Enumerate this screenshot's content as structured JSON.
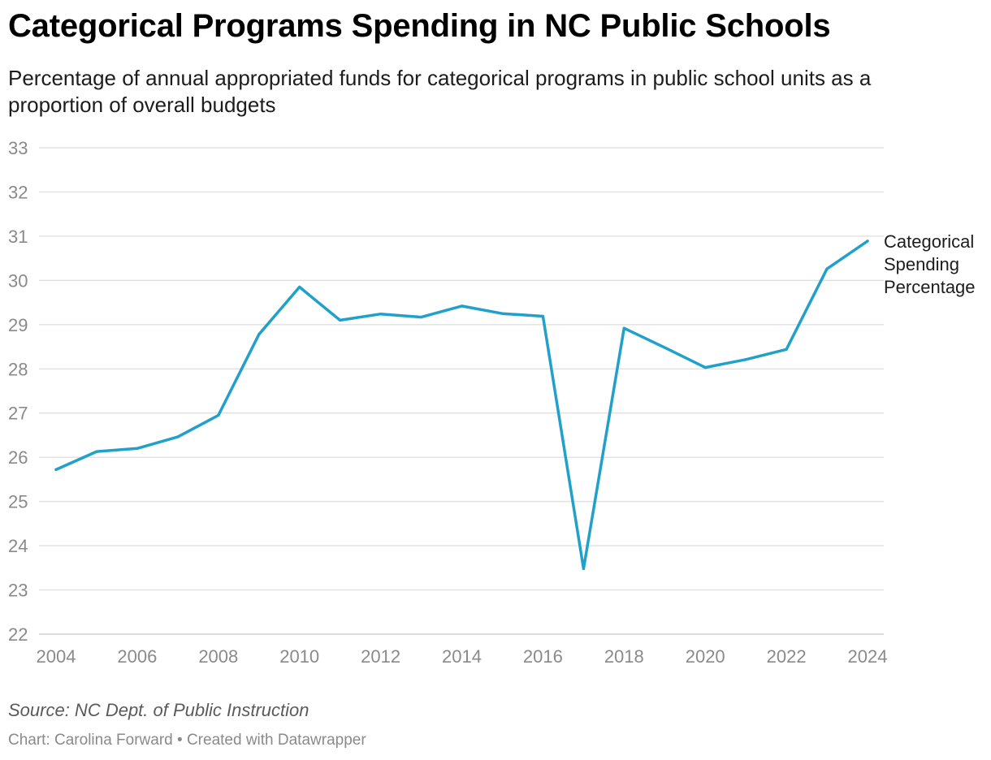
{
  "title": "Categorical Programs Spending in NC Public Schools",
  "subtitle": "Percentage of annual appropriated funds for categorical programs in public school units as a proportion of overall budgets",
  "colors": {
    "line": "#22a0cc",
    "grid": "#e0e0e0",
    "tick": "#8a8a8a"
  },
  "chart_data": {
    "type": "line",
    "title": "Categorical Programs Spending in NC Public Schools",
    "xlabel": "",
    "ylabel": "",
    "xlim": [
      2004,
      2024
    ],
    "ylim": [
      22,
      33
    ],
    "x_ticks": [
      2004,
      2006,
      2008,
      2010,
      2012,
      2014,
      2016,
      2018,
      2020,
      2022,
      2024
    ],
    "y_ticks": [
      22,
      23,
      24,
      25,
      26,
      27,
      28,
      29,
      30,
      31,
      32,
      33
    ],
    "grid": true,
    "series": [
      {
        "name": "Categorical Spending Percentage",
        "label_lines": [
          "Categorical",
          "Spending",
          "Percentage"
        ],
        "x": [
          2004,
          2005,
          2006,
          2007,
          2008,
          2009,
          2010,
          2011,
          2012,
          2013,
          2014,
          2015,
          2016,
          2017,
          2018,
          2019,
          2020,
          2021,
          2022,
          2023,
          2024
        ],
        "values": [
          25.72,
          26.13,
          26.2,
          26.46,
          26.95,
          28.78,
          29.85,
          29.1,
          29.24,
          29.17,
          29.42,
          29.25,
          29.19,
          23.48,
          28.92,
          28.48,
          28.03,
          28.21,
          28.44,
          30.26,
          30.89
        ]
      }
    ]
  },
  "source": "Source: NC Dept. of Public Instruction",
  "footer": "Chart: Carolina Forward • Created with Datawrapper"
}
